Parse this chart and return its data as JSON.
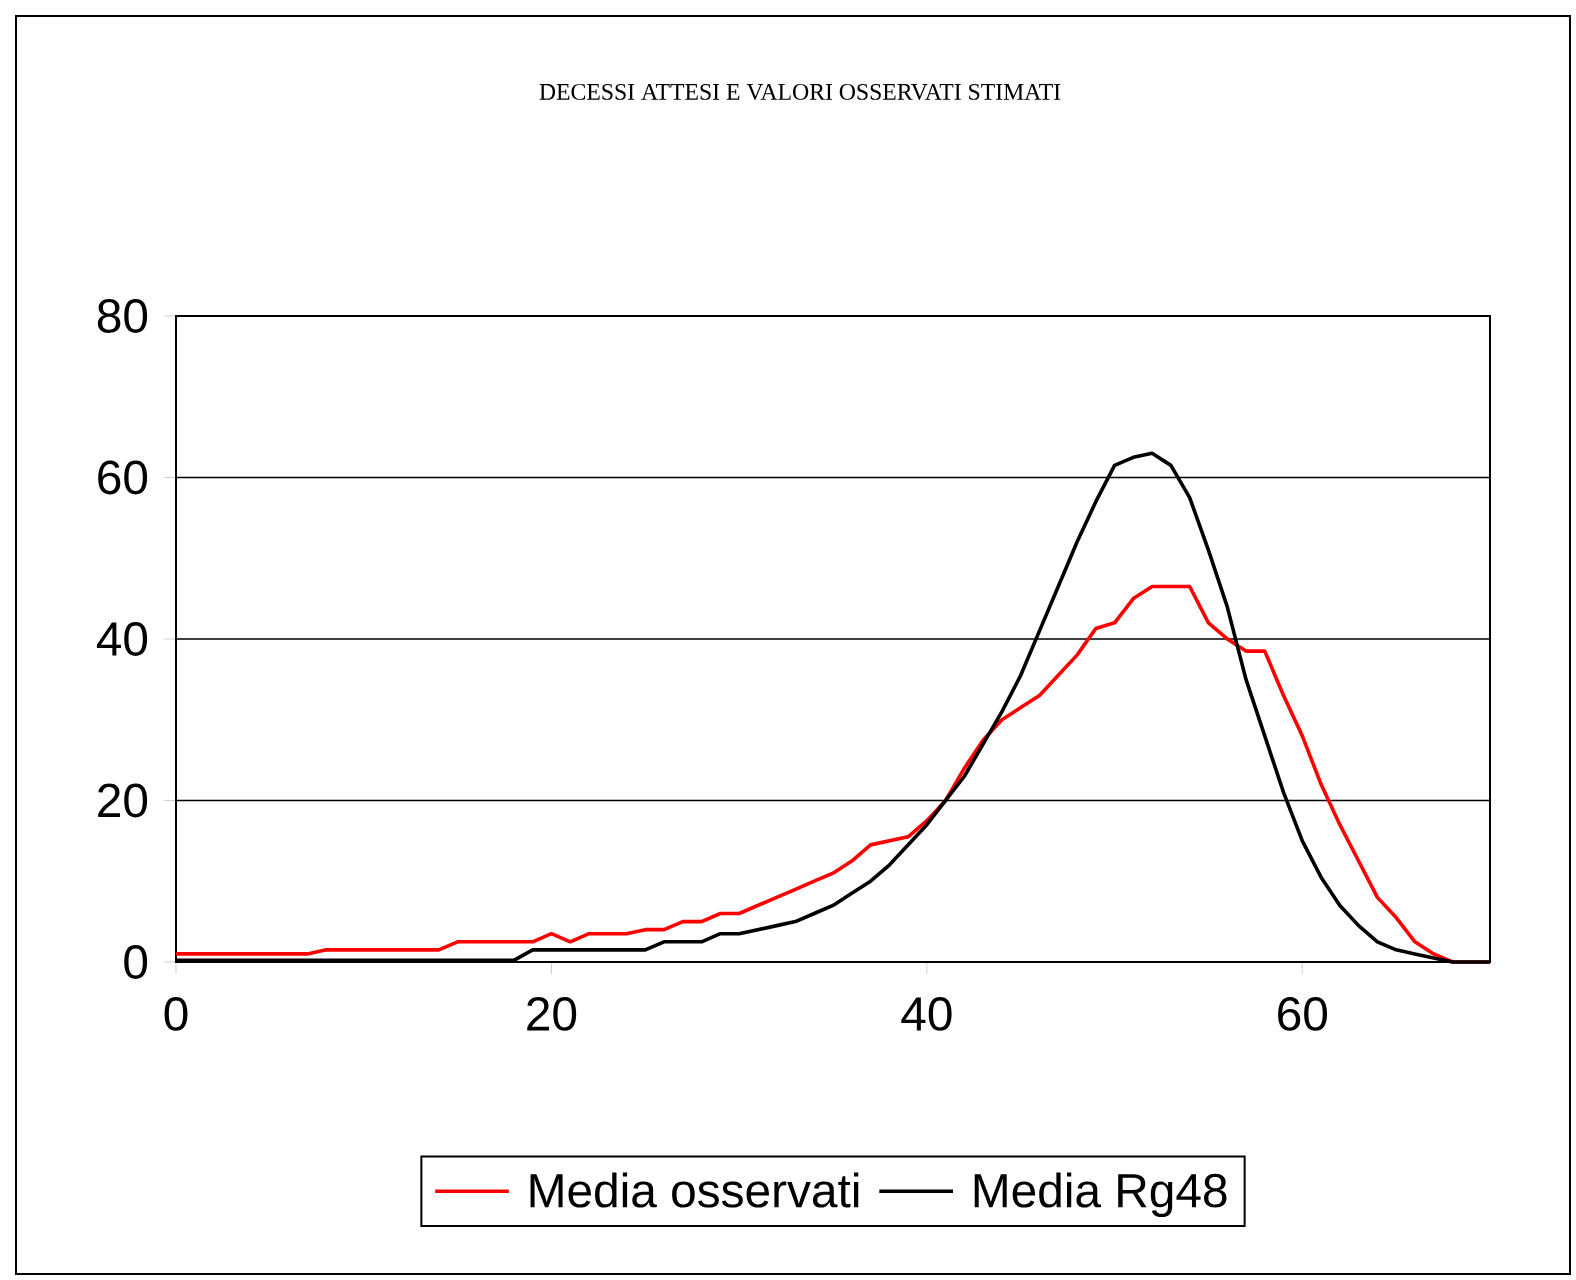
{
  "chart_data": {
    "type": "line",
    "title": "DECESSI ATTESI E VALORI OSSERVATI STIMATI",
    "x": [
      0,
      1,
      2,
      3,
      4,
      5,
      6,
      7,
      8,
      9,
      10,
      11,
      12,
      13,
      14,
      15,
      16,
      17,
      18,
      19,
      20,
      21,
      22,
      23,
      24,
      25,
      26,
      27,
      28,
      29,
      30,
      31,
      32,
      33,
      34,
      35,
      36,
      37,
      38,
      39,
      40,
      41,
      42,
      43,
      44,
      45,
      46,
      47,
      48,
      49,
      50,
      51,
      52,
      53,
      54,
      55,
      56,
      57,
      58,
      59,
      60,
      61,
      62,
      63,
      64,
      65,
      66,
      67,
      68,
      69,
      70
    ],
    "series": [
      {
        "name": "Media osservati",
        "color": "#ff0000",
        "values": [
          1,
          1,
          1,
          1,
          1,
          1,
          1,
          1,
          1.5,
          1.5,
          1.5,
          1.5,
          1.5,
          1.5,
          1.5,
          2.5,
          2.5,
          2.5,
          2.5,
          2.5,
          3.5,
          2.5,
          3.5,
          3.5,
          3.5,
          4,
          4,
          5,
          5,
          6,
          6,
          7,
          8,
          9,
          10,
          11,
          12.5,
          14.5,
          15,
          15.5,
          17.5,
          20,
          24,
          27.5,
          30,
          31.5,
          33,
          35.5,
          38,
          41.3,
          42,
          45,
          46.5,
          46.5,
          46.5,
          42,
          40,
          38.5,
          38.5,
          33,
          28,
          22,
          17,
          12.5,
          8,
          5.5,
          2.5,
          1,
          0,
          0,
          0
        ]
      },
      {
        "name": "Media Rg48",
        "color": "#000000",
        "values": [
          0.2,
          0.2,
          0.2,
          0.2,
          0.2,
          0.2,
          0.2,
          0.2,
          0.2,
          0.2,
          0.2,
          0.2,
          0.2,
          0.2,
          0.2,
          0.2,
          0.2,
          0.2,
          0.2,
          1.5,
          1.5,
          1.5,
          1.5,
          1.5,
          1.5,
          1.5,
          2.5,
          2.5,
          2.5,
          3.5,
          3.5,
          4,
          4.5,
          5,
          6,
          7,
          8.5,
          10,
          12,
          14.5,
          17,
          20,
          23,
          27,
          31,
          35.5,
          41,
          46.5,
          52,
          57,
          61.5,
          62.5,
          63,
          61.5,
          57.5,
          51,
          44,
          35,
          28,
          21,
          15,
          10.5,
          7,
          4.5,
          2.5,
          1.5,
          1,
          0.5,
          0,
          0,
          0
        ]
      }
    ],
    "xlim": [
      0,
      70
    ],
    "xticks": [
      0,
      20,
      40,
      60
    ],
    "ylim": [
      0,
      80
    ],
    "yticks": [
      0,
      20,
      40,
      60,
      80
    ],
    "grid": "y",
    "legend": "bottom",
    "marker": "none",
    "line_style": "solid"
  }
}
